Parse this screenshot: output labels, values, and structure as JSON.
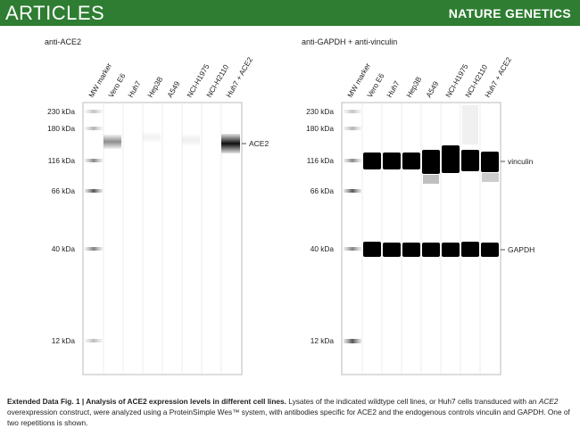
{
  "header": {
    "journal_section": "ARTICLES",
    "journal_name": "NATURE GENETICS"
  },
  "panels": [
    {
      "title": "anti-ACE2",
      "lanes": [
        "MW marker",
        "Vero E6",
        "Huh7",
        "Hep3B",
        "A549",
        "NCI-H1975",
        "NCI-H2110",
        "Huh7 + ACE2"
      ],
      "mw_labels": [
        "230 kDa",
        "180 kDa",
        "116 kDa",
        "66 kDa",
        "40 kDa",
        "12 kDa"
      ],
      "band_labels": [
        "ACE2"
      ]
    },
    {
      "title": "anti-GAPDH + anti-vinculin",
      "lanes": [
        "MW marker",
        "Vero E6",
        "Huh7",
        "Hep3B",
        "A549",
        "NCI-H1975",
        "NCI-H2110",
        "Huh7 + ACE2"
      ],
      "mw_labels": [
        "230 kDa",
        "180 kDa",
        "116 kDa",
        "66 kDa",
        "40 kDa",
        "12 kDa"
      ],
      "band_labels": [
        "vinculin",
        "GAPDH"
      ]
    }
  ],
  "caption": {
    "label": "Extended Data Fig. 1 | Analysis of ACE2 expression levels in different cell lines.",
    "text_1": " Lysates of the indicated wildtype cell lines, or Huh7 cells transduced with an ",
    "gene": "ACE2",
    "text_2": " overexpression construct, were analyzed using a ProteinSimple Wes™ system, with antibodies specific for ACE2 and the endogenous controls vinculin and GAPDH. One of two repetitions is shown."
  }
}
